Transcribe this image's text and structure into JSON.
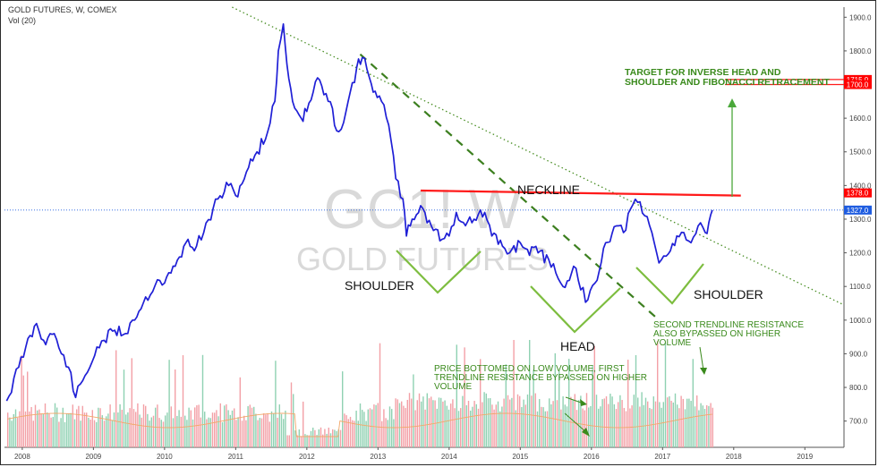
{
  "header": {
    "title": "GOLD FUTURES, W, COMEX",
    "subtitle": "Vol (20)"
  },
  "watermark": {
    "symbol": "GC1! W",
    "name": "GOLD FUTURES"
  },
  "colors": {
    "price_line": "#1f1fd6",
    "neckline": "#ff1a1a",
    "pattern": "#7dbd3f",
    "trend_dotted": "#4a8f26",
    "trend_dashed": "#3c7f1f",
    "annotation": "#3a8a1c",
    "vol_up": "#8fd1b2",
    "vol_down": "#f3a0a6",
    "vol_ma": "#f2a86a",
    "badge": "#ff0000",
    "current_badge": "#1e5ce0"
  },
  "annotations": {
    "target": [
      "TARGET FOR INVERSE HEAD AND",
      "SHOULDER AND FIBONACCI RETRACEMENT"
    ],
    "neckline": "NECKLINE",
    "left_shoulder": "SHOULDER",
    "head": "HEAD",
    "right_shoulder": "SHOULDER",
    "second_trendline": [
      "SECOND TRENDLINE RESISTANCE",
      "ALSO BYPASSED ON HIGHER",
      "VOLUME"
    ],
    "price_bottomed": [
      "PRICE BOTTOMED ON LOW VOLUME, FIRST",
      "TRENDLINE RESISTANCE BYPASSED ON HIGHER",
      "VOLUME"
    ]
  },
  "price_badges": {
    "badge_1715": "1715.0",
    "badge_1700": "1700.0",
    "badge_1378": "1378.0",
    "badge_1327": "1327.0"
  },
  "chart_data": {
    "type": "line",
    "title": "GOLD FUTURES, W, COMEX",
    "y_axis_ticks": [
      700,
      800,
      900,
      1000,
      1100,
      1200,
      1300,
      1400,
      1500,
      1600,
      1700,
      1800,
      1900
    ],
    "y_tick_labels": [
      "700.0",
      "800.0",
      "900.0",
      "1000.0",
      "1100.0",
      "1200.0",
      "1300.0",
      "1400.0",
      "1500.0",
      "1600.0",
      "1700.0",
      "1800.0",
      "1900.0"
    ],
    "x_axis_ticks": [
      2008,
      2009,
      2010,
      2011,
      2012,
      2013,
      2014,
      2015,
      2016,
      2017,
      2018,
      2019
    ],
    "x_tick_labels": [
      "2008",
      "2009",
      "2010",
      "2011",
      "2012",
      "2013",
      "2014",
      "2015",
      "2016",
      "2017",
      "2018",
      "2019"
    ],
    "xlim": [
      2007.75,
      2019.55
    ],
    "ylim": [
      622,
      1930
    ],
    "grid": false,
    "price_series": {
      "name": "GC1!",
      "x": [
        2007.78,
        2007.95,
        2008.05,
        2008.2,
        2008.3,
        2008.45,
        2008.55,
        2008.65,
        2008.75,
        2008.85,
        2008.95,
        2009.05,
        2009.15,
        2009.3,
        2009.45,
        2009.55,
        2009.7,
        2009.9,
        2010.0,
        2010.15,
        2010.3,
        2010.45,
        2010.55,
        2010.75,
        2010.9,
        2011.0,
        2011.15,
        2011.3,
        2011.45,
        2011.55,
        2011.6,
        2011.67,
        2011.72,
        2011.8,
        2011.92,
        2012.0,
        2012.15,
        2012.3,
        2012.45,
        2012.55,
        2012.7,
        2012.78,
        2012.88,
        2012.96,
        2013.05,
        2013.15,
        2013.25,
        2013.35,
        2013.4,
        2013.48,
        2013.6,
        2013.75,
        2013.9,
        2014.0,
        2014.1,
        2014.2,
        2014.35,
        2014.5,
        2014.6,
        2014.75,
        2014.85,
        2015.0,
        2015.1,
        2015.25,
        2015.4,
        2015.5,
        2015.6,
        2015.75,
        2015.85,
        2015.95,
        2016.05,
        2016.2,
        2016.35,
        2016.45,
        2016.55,
        2016.65,
        2016.75,
        2016.85,
        2016.95,
        2017.05,
        2017.2,
        2017.3,
        2017.4,
        2017.5,
        2017.6,
        2017.65,
        2017.7
      ],
      "y": [
        760,
        860,
        920,
        990,
        940,
        960,
        900,
        860,
        770,
        820,
        860,
        920,
        940,
        970,
        960,
        1000,
        1050,
        1120,
        1110,
        1160,
        1230,
        1220,
        1260,
        1360,
        1400,
        1370,
        1440,
        1500,
        1560,
        1650,
        1800,
        1880,
        1760,
        1650,
        1600,
        1620,
        1720,
        1650,
        1560,
        1620,
        1750,
        1780,
        1720,
        1680,
        1650,
        1580,
        1420,
        1360,
        1250,
        1300,
        1340,
        1280,
        1240,
        1250,
        1320,
        1290,
        1300,
        1320,
        1250,
        1220,
        1200,
        1230,
        1210,
        1200,
        1180,
        1140,
        1100,
        1160,
        1090,
        1060,
        1110,
        1230,
        1280,
        1260,
        1330,
        1350,
        1310,
        1260,
        1170,
        1190,
        1250,
        1260,
        1230,
        1280,
        1260,
        1290,
        1327
      ]
    },
    "volume_series": {
      "name": "Vol (20)"
    },
    "neckline": {
      "x": [
        2013.6,
        2018.1
      ],
      "y": [
        1385,
        1370
      ],
      "label": "NECKLINE"
    },
    "dotted_trendline": {
      "x": [
        2010.95,
        2019.55
      ],
      "y": [
        2415,
        1045
      ]
    },
    "dashed_trendline": {
      "x": [
        2012.75,
        2016.95
      ],
      "y": [
        1790,
        1000
      ]
    },
    "target_lines": [
      1715,
      1700
    ],
    "current_price": 1327
  }
}
